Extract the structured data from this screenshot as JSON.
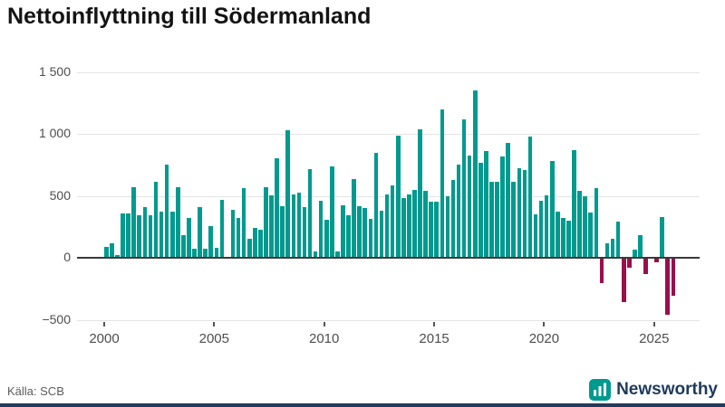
{
  "title": "Nettoinflyttning till Södermanland",
  "source": "Källa: SCB",
  "brand": {
    "name": "Newsworthy",
    "icon": "bar-chart-bubble-icon"
  },
  "colors": {
    "positive_bar": "#009a8e",
    "negative_bar": "#9b0e4e",
    "grid": "#e4e4e4",
    "baseline": "#3a3a3a",
    "title_text": "#141414",
    "axis_text": "#4d4d4d",
    "brand_navy": "#1e3a5c",
    "bottom_strip": "#24395b"
  },
  "chart_data": {
    "type": "bar",
    "title": "Nettoinflyttning till Södermanland",
    "xlabel": "",
    "ylabel": "",
    "frequency": "quarterly",
    "start_period": "2000Q1",
    "end_period": "2025Q4",
    "values": [
      85,
      120,
      25,
      360,
      355,
      570,
      340,
      410,
      345,
      615,
      375,
      750,
      375,
      570,
      185,
      325,
      75,
      410,
      75,
      255,
      80,
      470,
      0,
      390,
      325,
      565,
      155,
      240,
      230,
      570,
      505,
      800,
      415,
      1030,
      510,
      525,
      410,
      715,
      50,
      460,
      305,
      740,
      55,
      425,
      340,
      635,
      420,
      400,
      315,
      850,
      380,
      510,
      585,
      985,
      480,
      510,
      550,
      1040,
      540,
      450,
      455,
      1195,
      495,
      630,
      755,
      1115,
      825,
      1350,
      770,
      860,
      615,
      610,
      815,
      925,
      610,
      720,
      710,
      980,
      350,
      460,
      505,
      785,
      370,
      325,
      300,
      870,
      540,
      500,
      365,
      565,
      -205,
      120,
      150,
      295,
      -355,
      -80,
      65,
      185,
      -130,
      0,
      -35,
      330,
      -460,
      -305
    ],
    "ylim": [
      -500,
      1500
    ],
    "yticks": [
      1500,
      1000,
      500,
      0,
      -500
    ],
    "ytick_labels": [
      "1 500",
      "1 000",
      "500",
      "0",
      "−500"
    ],
    "xtick_years": [
      2000,
      2005,
      2010,
      2015,
      2020,
      2025
    ],
    "xtick_labels": [
      "2000",
      "2005",
      "2010",
      "2015",
      "2020",
      "2025"
    ],
    "grid": true,
    "legend": "none"
  }
}
